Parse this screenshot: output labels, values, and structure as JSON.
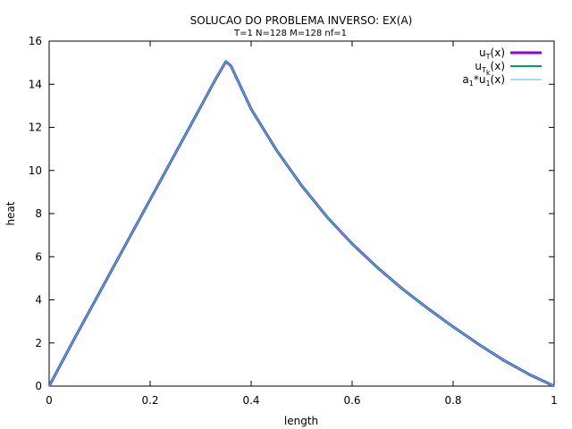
{
  "chart_data": {
    "type": "line",
    "title": "SOLUCAO DO PROBLEMA INVERSO: EX(A)",
    "subtitle": "T=1 N=128 M=128 nf=1",
    "xlabel": "length",
    "ylabel": "heat",
    "xlim": [
      0,
      1
    ],
    "ylim": [
      0,
      16
    ],
    "xticks": [
      0,
      0.2,
      0.4,
      0.6,
      0.8,
      1
    ],
    "xtick_labels": [
      "0",
      "0.2",
      "0.4",
      "0.6",
      "0.8",
      "1"
    ],
    "yticks": [
      0,
      2,
      4,
      6,
      8,
      10,
      12,
      14,
      16
    ],
    "ytick_labels": [
      "0",
      "2",
      "4",
      "6",
      "8",
      "10",
      "12",
      "14",
      "16"
    ],
    "grid": false,
    "legend_position": "top-right",
    "x": [
      0,
      0.05,
      0.1,
      0.15,
      0.2,
      0.25,
      0.3,
      0.33,
      0.35,
      0.36,
      0.4,
      0.45,
      0.5,
      0.55,
      0.6,
      0.65,
      0.7,
      0.75,
      0.8,
      0.85,
      0.9,
      0.95,
      1
    ],
    "series": [
      {
        "name": "u_T(x)",
        "label_base": "u",
        "label_sub": "T",
        "label_sub2": "",
        "label_rest": "(x)",
        "color": "#9400d3",
        "stroke": 3,
        "values": [
          0.0,
          2.2,
          4.35,
          6.5,
          8.65,
          10.8,
          12.95,
          14.25,
          15.05,
          14.85,
          12.85,
          10.95,
          9.3,
          7.85,
          6.6,
          5.5,
          4.5,
          3.6,
          2.75,
          1.95,
          1.2,
          0.55,
          0.0
        ]
      },
      {
        "name": "u_{T_k}(x)",
        "label_base": "u",
        "label_sub": "T",
        "label_sub2": "k",
        "label_rest": "(x)",
        "color": "#009e73",
        "stroke": 2,
        "values": [
          0.0,
          2.2,
          4.35,
          6.5,
          8.65,
          10.8,
          12.95,
          14.25,
          15.05,
          14.85,
          12.85,
          10.95,
          9.3,
          7.85,
          6.6,
          5.5,
          4.5,
          3.6,
          2.75,
          1.95,
          1.2,
          0.55,
          0.0
        ]
      },
      {
        "name": "a_1*u_1(x)",
        "label_base": "a",
        "label_sub": "1",
        "label_sub2": "",
        "label_rest": "*u",
        "label_sub3": "1",
        "label_rest2": "(x)",
        "color": "#56b4e9",
        "stroke": 1,
        "values": [
          0.0,
          2.2,
          4.35,
          6.5,
          8.65,
          10.8,
          12.95,
          14.25,
          15.05,
          14.85,
          12.85,
          10.95,
          9.3,
          7.85,
          6.6,
          5.5,
          4.5,
          3.6,
          2.75,
          1.95,
          1.2,
          0.55,
          0.0
        ]
      }
    ]
  }
}
